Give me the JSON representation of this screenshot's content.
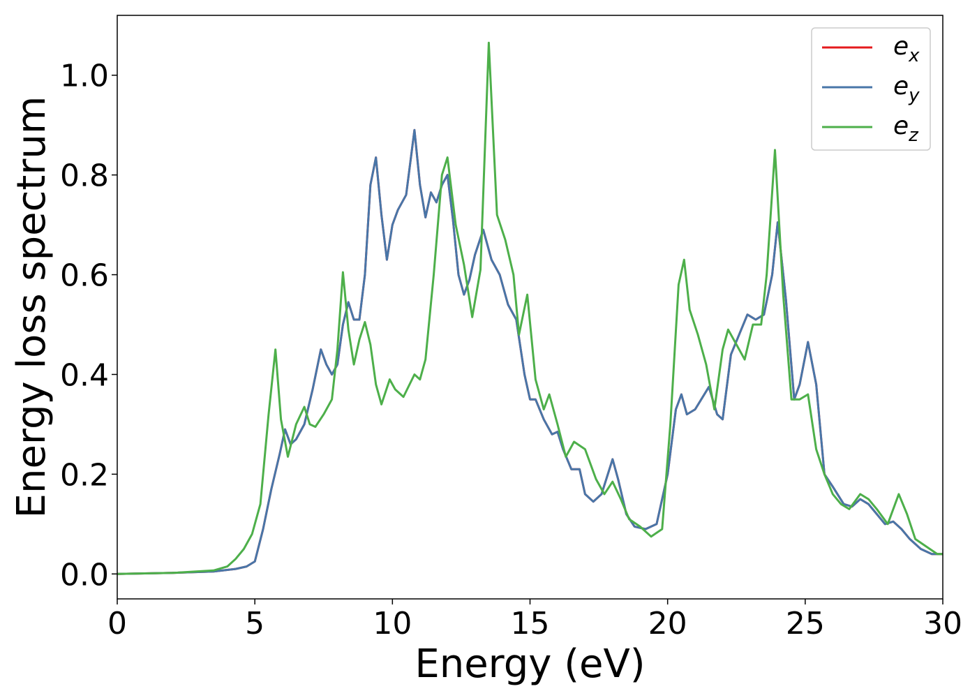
{
  "chart_data": {
    "type": "line",
    "title": "",
    "xlabel": "Energy (eV)",
    "ylabel": "Energy loss spectrum",
    "xlim": [
      0,
      30
    ],
    "ylim": [
      -0.05,
      1.12
    ],
    "xticks": [
      0,
      5,
      10,
      15,
      20,
      25,
      30
    ],
    "xtick_labels": [
      "0",
      "5",
      "10",
      "15",
      "20",
      "25",
      "30"
    ],
    "yticks": [
      0.0,
      0.2,
      0.4,
      0.6,
      0.8,
      1.0
    ],
    "ytick_labels": [
      "0.0",
      "0.2",
      "0.4",
      "0.6",
      "0.8",
      "1.0"
    ],
    "grid": false,
    "legend_position": "top-right",
    "series": [
      {
        "name": "e_x",
        "legend_base": "e",
        "legend_sub": "x",
        "color": "#e41a1c",
        "x": [
          0,
          2,
          3.5,
          4.3,
          4.7,
          5.0,
          5.3,
          5.6,
          5.9,
          6.1,
          6.3,
          6.5,
          6.8,
          7.1,
          7.4,
          7.6,
          7.8,
          8.0,
          8.2,
          8.4,
          8.6,
          8.8,
          9.0,
          9.2,
          9.4,
          9.6,
          9.8,
          10.0,
          10.2,
          10.5,
          10.8,
          11.0,
          11.2,
          11.4,
          11.6,
          11.8,
          12.0,
          12.2,
          12.4,
          12.6,
          12.8,
          13.0,
          13.3,
          13.6,
          13.9,
          14.2,
          14.5,
          14.8,
          15.0,
          15.2,
          15.5,
          15.8,
          16.0,
          16.2,
          16.5,
          16.8,
          17.0,
          17.3,
          17.6,
          18.0,
          18.2,
          18.5,
          18.8,
          19.2,
          19.6,
          20.0,
          20.3,
          20.5,
          20.7,
          21.0,
          21.5,
          21.8,
          22.0,
          22.3,
          22.6,
          22.9,
          23.2,
          23.5,
          23.8,
          24.0,
          24.3,
          24.6,
          24.8,
          25.1,
          25.4,
          25.7,
          26.0,
          26.4,
          26.7,
          27.0,
          27.3,
          27.6,
          27.9,
          28.2,
          28.5,
          28.8,
          29.2,
          29.6,
          30.0
        ],
        "y": [
          0,
          0.002,
          0.005,
          0.01,
          0.015,
          0.025,
          0.09,
          0.17,
          0.24,
          0.29,
          0.26,
          0.27,
          0.3,
          0.37,
          0.45,
          0.42,
          0.4,
          0.42,
          0.5,
          0.545,
          0.51,
          0.51,
          0.6,
          0.78,
          0.835,
          0.72,
          0.63,
          0.7,
          0.73,
          0.76,
          0.89,
          0.78,
          0.715,
          0.765,
          0.745,
          0.78,
          0.8,
          0.71,
          0.6,
          0.56,
          0.59,
          0.64,
          0.69,
          0.63,
          0.6,
          0.54,
          0.51,
          0.4,
          0.35,
          0.35,
          0.31,
          0.28,
          0.285,
          0.25,
          0.21,
          0.21,
          0.16,
          0.145,
          0.16,
          0.23,
          0.19,
          0.12,
          0.095,
          0.09,
          0.1,
          0.2,
          0.33,
          0.36,
          0.32,
          0.33,
          0.375,
          0.32,
          0.31,
          0.44,
          0.48,
          0.52,
          0.51,
          0.52,
          0.6,
          0.705,
          0.55,
          0.35,
          0.38,
          0.465,
          0.38,
          0.2,
          0.175,
          0.14,
          0.135,
          0.15,
          0.14,
          0.12,
          0.1,
          0.105,
          0.09,
          0.07,
          0.05,
          0.04,
          0.04
        ]
      },
      {
        "name": "e_y",
        "legend_base": "e",
        "legend_sub": "y",
        "color": "#4876a8",
        "x": [
          0,
          2,
          3.5,
          4.3,
          4.7,
          5.0,
          5.3,
          5.6,
          5.9,
          6.1,
          6.3,
          6.5,
          6.8,
          7.1,
          7.4,
          7.6,
          7.8,
          8.0,
          8.2,
          8.4,
          8.6,
          8.8,
          9.0,
          9.2,
          9.4,
          9.6,
          9.8,
          10.0,
          10.2,
          10.5,
          10.8,
          11.0,
          11.2,
          11.4,
          11.6,
          11.8,
          12.0,
          12.2,
          12.4,
          12.6,
          12.8,
          13.0,
          13.3,
          13.6,
          13.9,
          14.2,
          14.5,
          14.8,
          15.0,
          15.2,
          15.5,
          15.8,
          16.0,
          16.2,
          16.5,
          16.8,
          17.0,
          17.3,
          17.6,
          18.0,
          18.2,
          18.5,
          18.8,
          19.2,
          19.6,
          20.0,
          20.3,
          20.5,
          20.7,
          21.0,
          21.5,
          21.8,
          22.0,
          22.3,
          22.6,
          22.9,
          23.2,
          23.5,
          23.8,
          24.0,
          24.3,
          24.6,
          24.8,
          25.1,
          25.4,
          25.7,
          26.0,
          26.4,
          26.7,
          27.0,
          27.3,
          27.6,
          27.9,
          28.2,
          28.5,
          28.8,
          29.2,
          29.6,
          30.0
        ],
        "y": [
          0,
          0.002,
          0.005,
          0.01,
          0.015,
          0.025,
          0.09,
          0.17,
          0.24,
          0.29,
          0.26,
          0.27,
          0.3,
          0.37,
          0.45,
          0.42,
          0.4,
          0.42,
          0.5,
          0.545,
          0.51,
          0.51,
          0.6,
          0.78,
          0.835,
          0.72,
          0.63,
          0.7,
          0.73,
          0.76,
          0.89,
          0.78,
          0.715,
          0.765,
          0.745,
          0.78,
          0.8,
          0.71,
          0.6,
          0.56,
          0.59,
          0.64,
          0.69,
          0.63,
          0.6,
          0.54,
          0.51,
          0.4,
          0.35,
          0.35,
          0.31,
          0.28,
          0.285,
          0.25,
          0.21,
          0.21,
          0.16,
          0.145,
          0.16,
          0.23,
          0.19,
          0.12,
          0.095,
          0.09,
          0.1,
          0.2,
          0.33,
          0.36,
          0.32,
          0.33,
          0.375,
          0.32,
          0.31,
          0.44,
          0.48,
          0.52,
          0.51,
          0.52,
          0.6,
          0.705,
          0.55,
          0.35,
          0.38,
          0.465,
          0.38,
          0.2,
          0.175,
          0.14,
          0.135,
          0.15,
          0.14,
          0.12,
          0.1,
          0.105,
          0.09,
          0.07,
          0.05,
          0.04,
          0.04
        ]
      },
      {
        "name": "e_z",
        "legend_base": "e",
        "legend_sub": "z",
        "color": "#4daf4a",
        "x": [
          0,
          2,
          3.5,
          4.0,
          4.3,
          4.6,
          4.9,
          5.2,
          5.5,
          5.75,
          5.95,
          6.2,
          6.5,
          6.8,
          7.0,
          7.2,
          7.5,
          7.8,
          8.0,
          8.2,
          8.4,
          8.6,
          8.8,
          9.0,
          9.2,
          9.4,
          9.6,
          9.9,
          10.1,
          10.4,
          10.8,
          11.0,
          11.2,
          11.5,
          11.8,
          12.0,
          12.3,
          12.6,
          12.9,
          13.2,
          13.5,
          13.8,
          14.1,
          14.4,
          14.6,
          14.9,
          15.2,
          15.5,
          15.7,
          16.0,
          16.3,
          16.6,
          17.0,
          17.4,
          17.7,
          18.0,
          18.3,
          18.6,
          19.0,
          19.4,
          19.8,
          20.1,
          20.4,
          20.6,
          20.8,
          21.1,
          21.4,
          21.7,
          22.0,
          22.2,
          22.5,
          22.8,
          23.1,
          23.4,
          23.6,
          23.9,
          24.2,
          24.5,
          24.8,
          25.1,
          25.4,
          25.7,
          26.0,
          26.3,
          26.6,
          27.0,
          27.3,
          27.6,
          28.0,
          28.4,
          28.7,
          29.0,
          29.4,
          29.8,
          30.0
        ],
        "y": [
          0,
          0.002,
          0.007,
          0.015,
          0.03,
          0.05,
          0.08,
          0.14,
          0.32,
          0.45,
          0.31,
          0.235,
          0.3,
          0.335,
          0.3,
          0.295,
          0.32,
          0.35,
          0.45,
          0.605,
          0.49,
          0.42,
          0.47,
          0.505,
          0.46,
          0.38,
          0.34,
          0.39,
          0.37,
          0.355,
          0.4,
          0.39,
          0.43,
          0.6,
          0.8,
          0.835,
          0.7,
          0.62,
          0.515,
          0.61,
          1.065,
          0.72,
          0.67,
          0.6,
          0.48,
          0.56,
          0.39,
          0.33,
          0.36,
          0.3,
          0.235,
          0.265,
          0.25,
          0.19,
          0.16,
          0.185,
          0.15,
          0.11,
          0.095,
          0.075,
          0.09,
          0.3,
          0.58,
          0.63,
          0.53,
          0.48,
          0.42,
          0.33,
          0.45,
          0.49,
          0.46,
          0.43,
          0.5,
          0.5,
          0.6,
          0.85,
          0.56,
          0.35,
          0.35,
          0.36,
          0.25,
          0.2,
          0.16,
          0.14,
          0.13,
          0.16,
          0.15,
          0.13,
          0.1,
          0.16,
          0.12,
          0.07,
          0.055,
          0.04,
          0.04
        ]
      }
    ]
  }
}
